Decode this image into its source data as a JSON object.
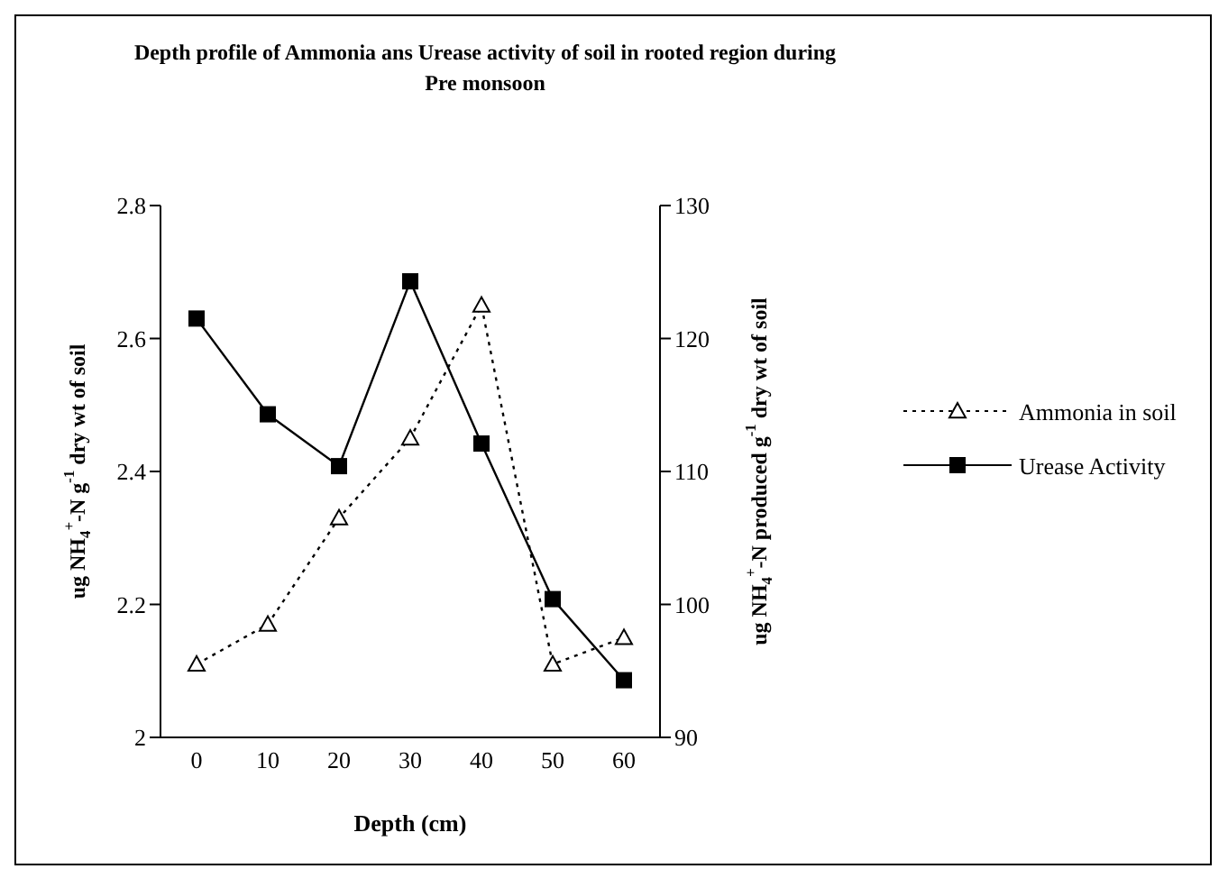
{
  "chart_data": {
    "type": "line",
    "title": "Depth profile of Ammonia ans Urease activity of soil in rooted region during Pre monsoon",
    "xlabel": "Depth (cm)",
    "ylabel": "ug NH$_{4}$$^{+}$-N g$^{-1}$ dry wt of soil",
    "y2label": "ug NH$_{4}$$^{+}$-N produced g$^{-1}$ dry wt of soil",
    "categories": [
      "0",
      "10",
      "20",
      "30",
      "40",
      "50",
      "60"
    ],
    "series": [
      {
        "name": "Ammonia in soil",
        "color": "#000000",
        "marker": "triangle",
        "line_style": "dotted",
        "values": [
          2.11,
          2.17,
          2.33,
          2.45,
          2.65,
          2.11,
          2.15
        ]
      },
      {
        "name": "Urease Activity",
        "color": "#000000",
        "marker": "square",
        "line_style": "solid",
        "axis": "y2",
        "values": [
          121.5,
          114.3,
          110.4,
          124.3,
          112.1,
          100.4,
          94.3
        ]
      }
    ],
    "ylim": [
      2,
      2.8
    ],
    "yticks": [
      2,
      2.2,
      2.4,
      2.6,
      2.8
    ],
    "y2lim": [
      90,
      130
    ],
    "y2ticks": [
      90,
      100,
      110,
      120,
      130
    ],
    "grid": false,
    "legend": "right"
  }
}
